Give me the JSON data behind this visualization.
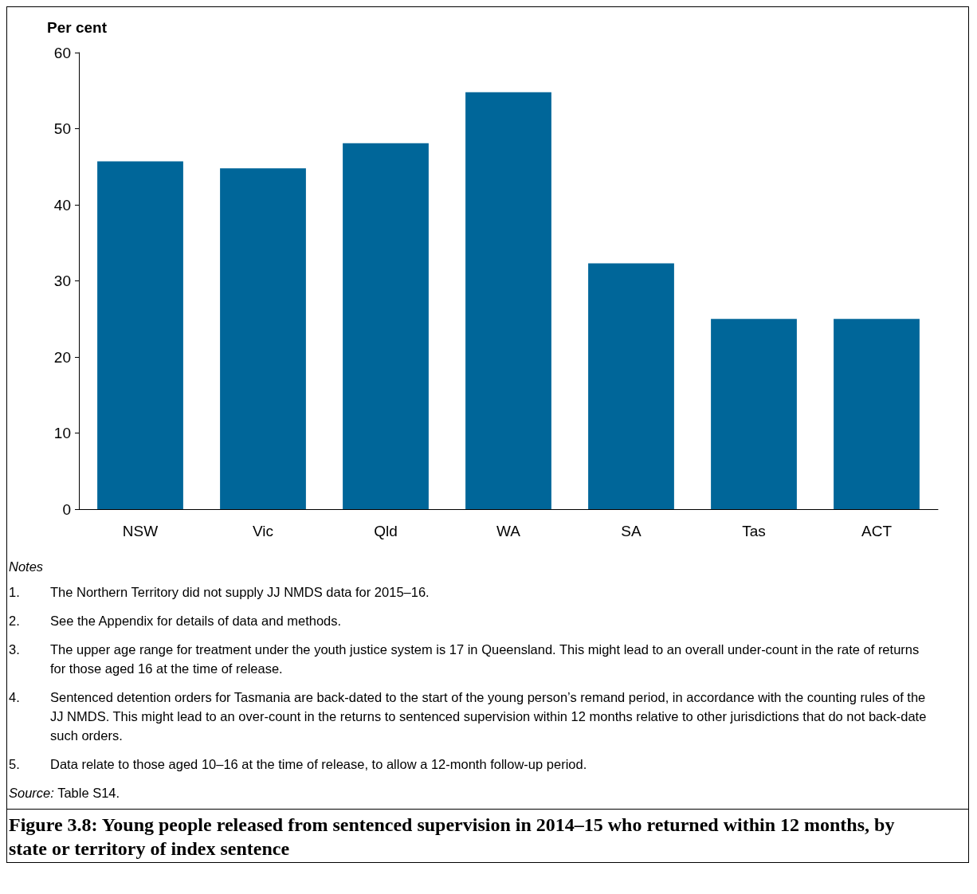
{
  "chart_data": {
    "type": "bar",
    "title": "Figure 3.8: Young people released from sentenced supervision in 2014–15 who returned within 12 months, by state or territory of index sentence",
    "ylabel": "Per cent",
    "categories": [
      "NSW",
      "Vic",
      "Qld",
      "WA",
      "SA",
      "Tas",
      "ACT"
    ],
    "values": [
      45.7,
      44.8,
      48.1,
      54.8,
      32.3,
      25.0,
      25.0
    ],
    "color": "#006699",
    "ylim": [
      0,
      60
    ],
    "yticks": [
      0,
      10,
      20,
      30,
      40,
      50,
      60
    ],
    "grid": false,
    "annotations": [
      "Notes",
      "1. The Northern Territory did not supply JJ NMDS data for 2015–16.",
      "2. See the Appendix for details of data and methods.",
      "3. The upper age range for treatment under the youth justice system is 17 in Queensland. This might lead to an overall under-count in the rate of returns for those aged 16 at the time of release.",
      "4. Sentenced detention orders for Tasmania are back-dated to the start of the young person’s remand period, in accordance with the counting rules of the JJ NMDS. This might lead to an over-count in the returns to sentenced supervision within 12 months relative to other jurisdictions that do not back-date such orders.",
      "5. Data relate to those aged 10–16 at the time of release, to allow a 12-month follow-up period.",
      "Source: Table S14."
    ]
  }
}
